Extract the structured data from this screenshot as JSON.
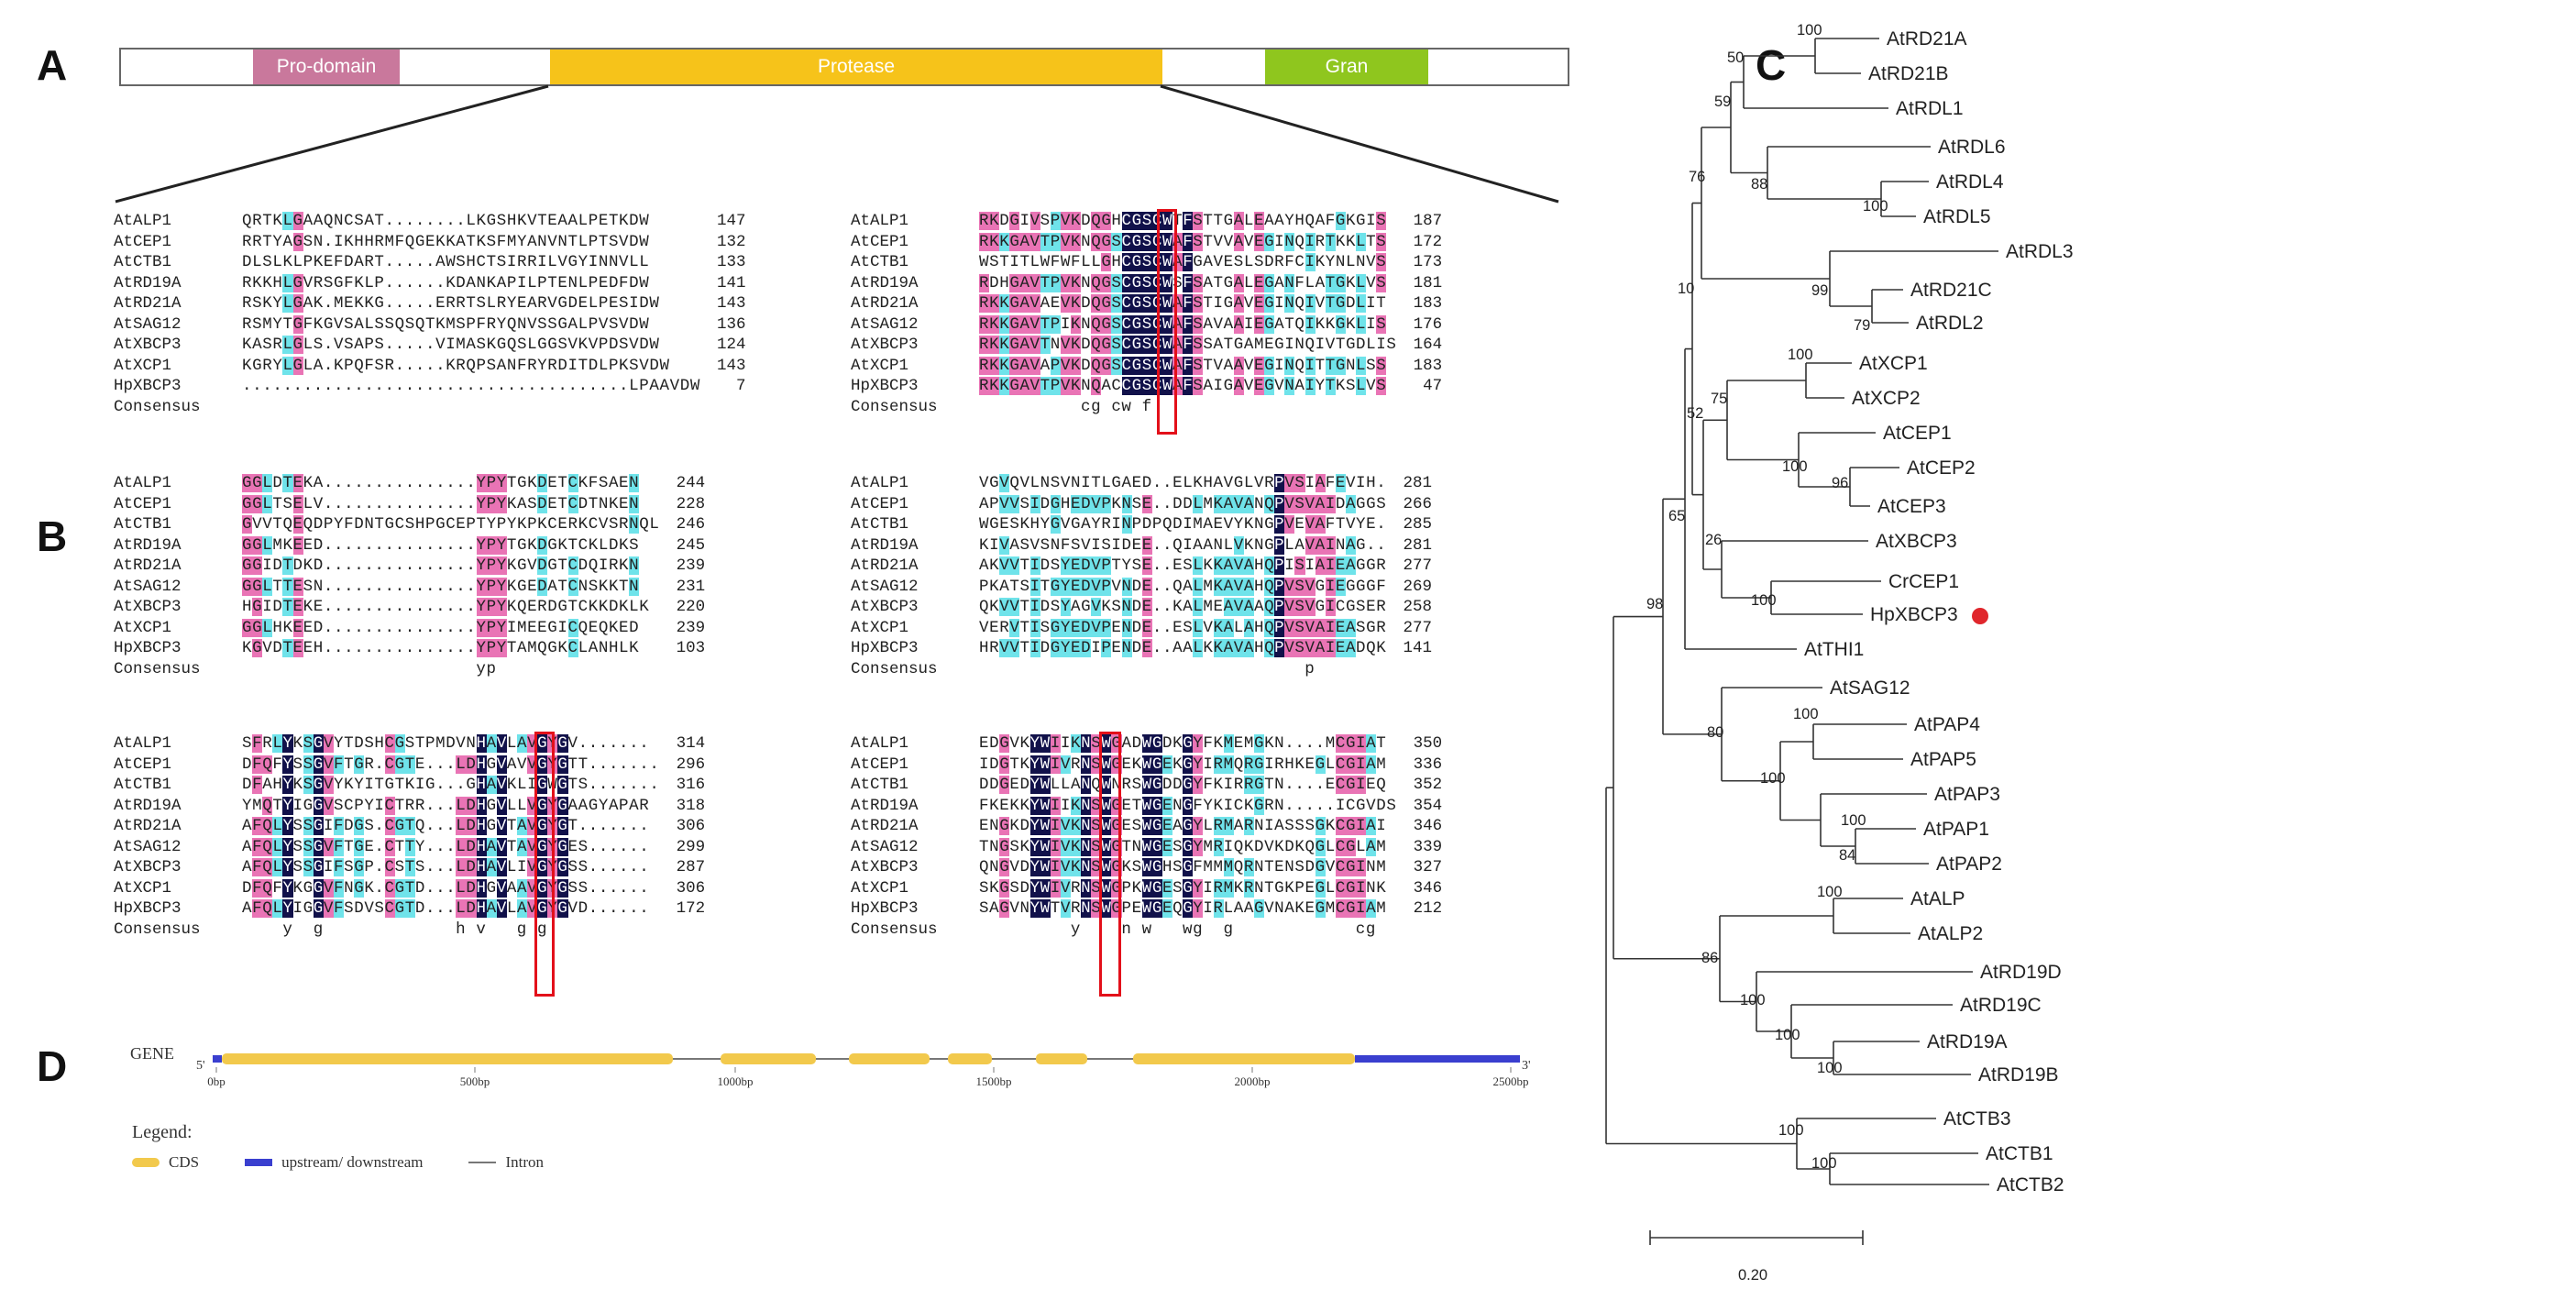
{
  "panels": {
    "a": "A",
    "b": "B",
    "c": "C",
    "d": "D"
  },
  "domains": [
    {
      "label": "Pro-domain",
      "color": "#c9789c"
    },
    {
      "label": "Protease",
      "color": "#f6c31a"
    },
    {
      "label": "Gran",
      "color": "#8fc61e"
    }
  ],
  "alignment_blocks": [
    {
      "rows": [
        {
          "name": "AtALP1",
          "seq": "QRTKLGAAQNCSAT........LKGSHKVTEAALPETKDW",
          "num": "147"
        },
        {
          "name": "AtCEP1",
          "seq": "RRTYAGSN.IKHHRMFQGEKKATKSFMYANVNTLPTSVDW",
          "num": "132"
        },
        {
          "name": "AtCTB1",
          "seq": "DLSLKLPKEFDART.....AWSHCTSIRRILVGYINNVLL",
          "num": "133"
        },
        {
          "name": "AtRD19A",
          "seq": "RKKHLGVRSGFKLP......KDANKAPILPTENLPEDFDW",
          "num": "141"
        },
        {
          "name": "AtRD21A",
          "seq": "RSKYLGAK.MEKKG.....ERRTSLRYEARVGDELPESIDW",
          "num": "143"
        },
        {
          "name": "AtSAG12",
          "seq": "RSMYTGFKGVSALSSQSQTKMSPFRYQNVSSGALPVSVDW",
          "num": "136"
        },
        {
          "name": "AtXBCP3",
          "seq": "KASRLGLS.VSAPS.....VIMASKGQSLGGSVKVPDSVDW",
          "num": "124"
        },
        {
          "name": "AtXCP1",
          "seq": "KGRYLGLA.KPQFSR.....KRQPSANFRYRDITDLPKSVDW",
          "num": "143"
        },
        {
          "name": "HpXBCP3",
          "seq": "......................................LPAAVDW",
          "num": "7"
        },
        {
          "name": "Consensus",
          "seq": "",
          "num": ""
        }
      ]
    },
    {
      "rows": [
        {
          "name": "AtALP1",
          "seq": "RKDGIVSPVKDQGHCGSCWTFSTTGALEAAYHQAFGKGIS",
          "num": "187"
        },
        {
          "name": "AtCEP1",
          "seq": "RKKGAVTPVKNQGSCGSCWAFSTVVAVEGINQIRTKKLTS",
          "num": "172"
        },
        {
          "name": "AtCTB1",
          "seq": "WSTITLWFWFLLGHCGSCWAFGAVESLSDRFCIKYNLNVS",
          "num": "173"
        },
        {
          "name": "AtRD19A",
          "seq": "RDHGAVTPVKNQGSCGSCWSFSATGALEGANFLATGKLVS",
          "num": "181"
        },
        {
          "name": "AtRD21A",
          "seq": "RKKGAVAEVKDQGSCGSCWAFSTIGAVEGINQIVTGDLIT",
          "num": "183"
        },
        {
          "name": "AtSAG12",
          "seq": "RKKGAVTPIKNQGSCGSCWAFSAVAAIEGATQIKKGKLIS",
          "num": "176"
        },
        {
          "name": "AtXBCP3",
          "seq": "RKKGAVTNVKDQGSCGSCWAFSSATGAMEGINQIVTGDLIS",
          "num": "164"
        },
        {
          "name": "AtXCP1",
          "seq": "RKKGAVAPVKDQGSCGSCWAFSTVAAVEGINQITTGNLSS",
          "num": "183"
        },
        {
          "name": "HpXBCP3",
          "seq": "RKKGAVTPVKNQACCGSCWAFSAIGAVEGVNAIYTKSLVS",
          "num": "47"
        },
        {
          "name": "Consensus",
          "seq": "          cg cw f",
          "num": ""
        }
      ]
    },
    {
      "rows": [
        {
          "name": "AtALP1",
          "seq": "GGLDTEKA...............YPYTGKDETCKFSAEN",
          "num": "244"
        },
        {
          "name": "AtCEP1",
          "seq": "GGLTSELV...............YPYKASDETCDTNKEN",
          "num": "228"
        },
        {
          "name": "AtCTB1",
          "seq": "GVVTQEQDPYFDNTGCSHPGCEPTYPYKPKCERKCVSRNQL",
          "num": "246"
        },
        {
          "name": "AtRD19A",
          "seq": "GGLMKEED...............YPYTGKDGKTCKLDKS",
          "num": "245"
        },
        {
          "name": "AtRD21A",
          "seq": "GGIDTDKD...............YPYKGVDGTCDQIRKN",
          "num": "239"
        },
        {
          "name": "AtSAG12",
          "seq": "GGLTTESN...............YPYKGEDATCNSKKTN",
          "num": "231"
        },
        {
          "name": "AtXBCP3",
          "seq": "HGIDTEKE...............YPYKQERDGTCKKDKLK",
          "num": "220"
        },
        {
          "name": "AtXCP1",
          "seq": "GGLHKEED...............YPYIMEEGICQEQKED",
          "num": "239"
        },
        {
          "name": "HpXBCP3",
          "seq": "KGVDTEEH...............YPYTAMQGKCLANHLK",
          "num": "103"
        },
        {
          "name": "Consensus",
          "seq": "                       yp",
          "num": ""
        }
      ]
    },
    {
      "rows": [
        {
          "name": "AtALP1",
          "seq": "VGVQVLNSVNITLGAED..ELKHAVGLVRPVSIAFEVIH.",
          "num": "281"
        },
        {
          "name": "AtCEP1",
          "seq": "APVVSIDGHEDVPKNSE..DDLMKAVANQPVSVAIDAGGS",
          "num": "266"
        },
        {
          "name": "AtCTB1",
          "seq": "WGESKHYGVGAYRINPDPQDIMAEVYKNGPVEVAFTVYE.",
          "num": "285"
        },
        {
          "name": "AtRD19A",
          "seq": "KIVASVSNFSVISIDEE..QIAANLVKNGPLAVAINAG..",
          "num": "281"
        },
        {
          "name": "AtRD21A",
          "seq": "AKVVTIDSYEDVPTYSE..ESLKKAVAHQPISIAIEAGGR",
          "num": "277"
        },
        {
          "name": "AtSAG12",
          "seq": "PKATSITGYEDVPVNDE..QALMKAVAHQPVSVGIEGGGF",
          "num": "269"
        },
        {
          "name": "AtXBCP3",
          "seq": "QKVVTIDSYAGVKSNDE..KALMEAVAAQPVSVGICGSER",
          "num": "258"
        },
        {
          "name": "AtXCP1",
          "seq": "VERVTISGYEDVPENDE..ESLVKALAHQPVSVAIEASGR",
          "num": "277"
        },
        {
          "name": "HpXBCP3",
          "seq": "HRVVTIDGYEDIPENDE..AALKKAVAHQPVSVAIEADQK",
          "num": "141"
        },
        {
          "name": "Consensus",
          "seq": "                                p",
          "num": ""
        }
      ]
    },
    {
      "rows": [
        {
          "name": "AtALP1",
          "seq": "SFRLYKSGVYTDSHCGSTPMDVNHAVLAVGYGV.......",
          "num": "314"
        },
        {
          "name": "AtCEP1",
          "seq": "DFQFYSSGVFTGR.CGTE...LDHGVAVVGYGTT.......",
          "num": "296"
        },
        {
          "name": "AtCTB1",
          "seq": "DFAHYKSGVYKYITGTKIG...GHAVKLIGWGTS.......",
          "num": "316"
        },
        {
          "name": "AtRD19A",
          "seq": "YMQTYIGGVSCPYICTRR...LDHGVLLVGYGAAGYAPAR",
          "num": "318"
        },
        {
          "name": "AtRD21A",
          "seq": "AFQLYSSGIFDGS.CGTQ...LDHGVTAVGYGT.......",
          "num": "306"
        },
        {
          "name": "AtSAG12",
          "seq": "AFQLYSSGVFTGE.CTTY...LDHAVTAVGYGES......",
          "num": "299"
        },
        {
          "name": "AtXBCP3",
          "seq": "AFQLYSSGIFSGP.CSTS...LDHAVLIVGYGSS......",
          "num": "287"
        },
        {
          "name": "AtXCP1",
          "seq": "DFQFYKGGVFNGK.CGTD...LDHGVAAVGYGSS......",
          "num": "306"
        },
        {
          "name": "HpXBCP3",
          "seq": "AFQLYIGGVFSDVSCGTD...LDHAVLAVGYGVD......",
          "num": "172"
        },
        {
          "name": "Consensus",
          "seq": "    y  g             h v   g g",
          "num": ""
        }
      ]
    },
    {
      "rows": [
        {
          "name": "AtALP1",
          "seq": "EDGVKYWIIKNSWGADWGDKGYFKMEMGKN....MCGIAT",
          "num": "350"
        },
        {
          "name": "AtCEP1",
          "seq": "IDGTKYWIVRNSWGEKWGEKGYIRMQRGIRHKEGLCGIAM",
          "num": "336"
        },
        {
          "name": "AtCTB1",
          "seq": "DDGEDYWLLANQWNRSWGDDGYFKIRRGTN....ECGIEQ",
          "num": "352"
        },
        {
          "name": "AtRD19A",
          "seq": "FKEKKYWIIKNSWGETWGENGFYKICKGRN.....ICGVDS",
          "num": "354"
        },
        {
          "name": "AtRD21A",
          "seq": "ENGKDYWIVKNSWGESWGEAGYLRMARNIASSSGKCGIAI",
          "num": "346"
        },
        {
          "name": "AtSAG12",
          "seq": "TNGSKYWIVKNSWGTNWGESGYMRIQKDVKDKQGLCGLAM",
          "num": "339"
        },
        {
          "name": "AtXBCP3",
          "seq": "QNGVDYWIVKNSWGKSWGHSGFMMMQRNTENSDGVCGINM",
          "num": "327"
        },
        {
          "name": "AtXCP1",
          "seq": "SKGSDYWIVRNSWGPKWGESGYIRMKRNTGKPEGLCGINK",
          "num": "346"
        },
        {
          "name": "HpXBCP3",
          "seq": "SAGVNYWTVRNSWGPEWGEQGYIRLAAGVNAKEGMCGIAM",
          "num": "212"
        },
        {
          "name": "Consensus",
          "seq": "         y    n w   wg  g            cg",
          "num": ""
        }
      ]
    }
  ],
  "tree": {
    "tips": [
      "AtRD21A",
      "AtRD21B",
      "AtRDL1",
      "AtRDL6",
      "AtRDL4",
      "AtRDL5",
      "AtRDL3",
      "AtRD21C",
      "AtRDL2",
      "AtXCP1",
      "AtXCP2",
      "AtCEP1",
      "AtCEP2",
      "AtCEP3",
      "AtXBCP3",
      "CrCEP1",
      "HpXBCP3",
      "AtTHI1",
      "AtSAG12",
      "AtPAP4",
      "AtPAP5",
      "AtPAP3",
      "AtPAP1",
      "AtPAP2",
      "AtALP",
      "AtALP2",
      "AtRD19D",
      "AtRD19C",
      "AtRD19A",
      "AtRD19B",
      "AtCTB3",
      "AtCTB1",
      "AtCTB2"
    ],
    "bootstrap": [
      "100",
      "50",
      "59",
      "88",
      "100",
      "76",
      "99",
      "79",
      "10",
      "100",
      "75",
      "100",
      "96",
      "52",
      "65",
      "26",
      "100",
      "98",
      "100",
      "80",
      "100",
      "100",
      "84",
      "100",
      "86",
      "100",
      "100",
      "100",
      "100",
      "100"
    ],
    "scale_label": "0.20",
    "highlight": "HpXBCP3",
    "highlight_color": "#e0262c"
  },
  "gene": {
    "label": "GENE",
    "five_prime": "5'",
    "three_prime": "3'",
    "ticks": [
      "0bp",
      "500bp",
      "1000bp",
      "1500bp",
      "2000bp",
      "2500bp"
    ],
    "legend_title": "Legend:",
    "legend": [
      "CDS",
      "upstream/ downstream",
      "Intron"
    ],
    "cds_color": "#f2c94c",
    "utr_color": "#3a3fcf"
  }
}
